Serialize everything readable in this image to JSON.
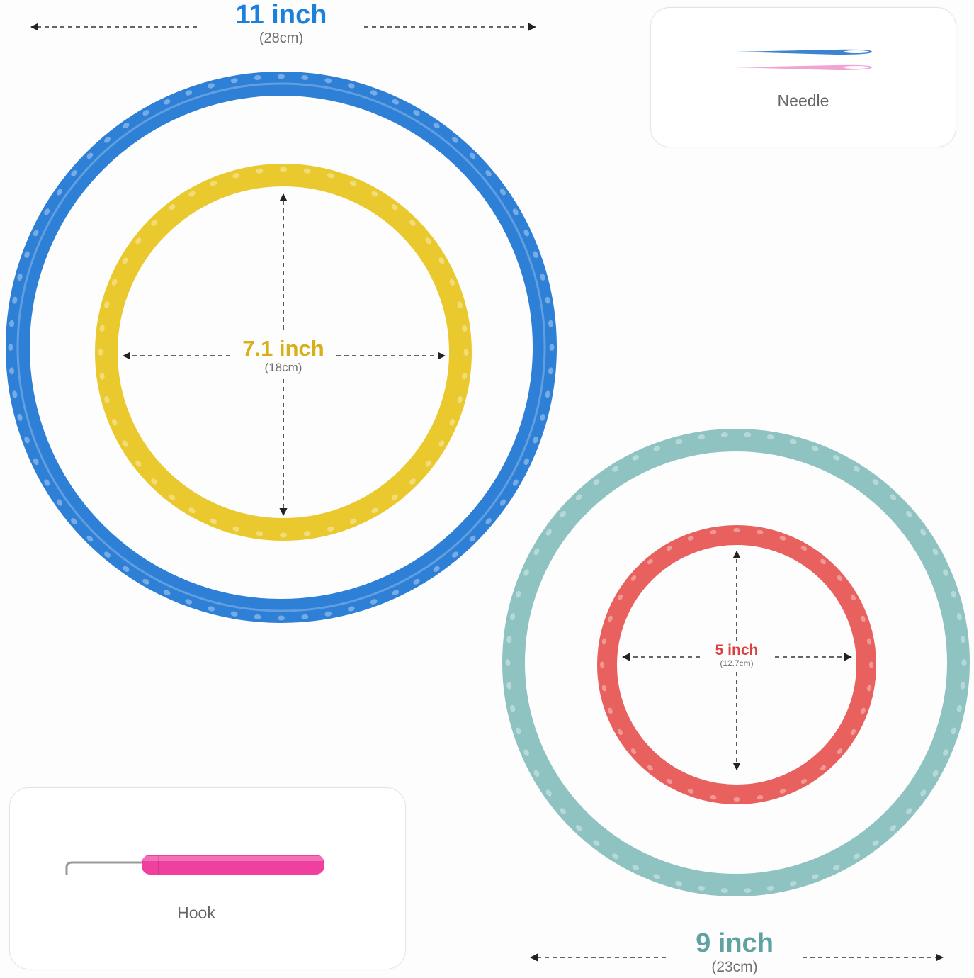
{
  "measurements": {
    "large_blue": {
      "size": "11 inch",
      "metric": "(28cm)"
    },
    "small_yellow": {
      "size": "7.1 inch",
      "metric": "(18cm)"
    },
    "large_teal": {
      "size": "9 inch",
      "metric": "(23cm)"
    },
    "small_red": {
      "size": "5 inch",
      "metric": "(12.7cm)"
    }
  },
  "accessories": {
    "needle_label": "Needle",
    "hook_label": "Hook"
  },
  "colors": {
    "blue_ring": "#2e7fd6",
    "yellow_ring": "#eac92f",
    "teal_ring": "#8fc3c2",
    "red_ring": "#e8615f",
    "blue_text": "#1b80dc",
    "yellow_text": "#d9ae16",
    "teal_text": "#5ea3a1",
    "red_text": "#d9403f",
    "needle_blue": "#3b84d1",
    "needle_pink": "#f1a3d6",
    "hook_handle": "#ef3f9f"
  }
}
